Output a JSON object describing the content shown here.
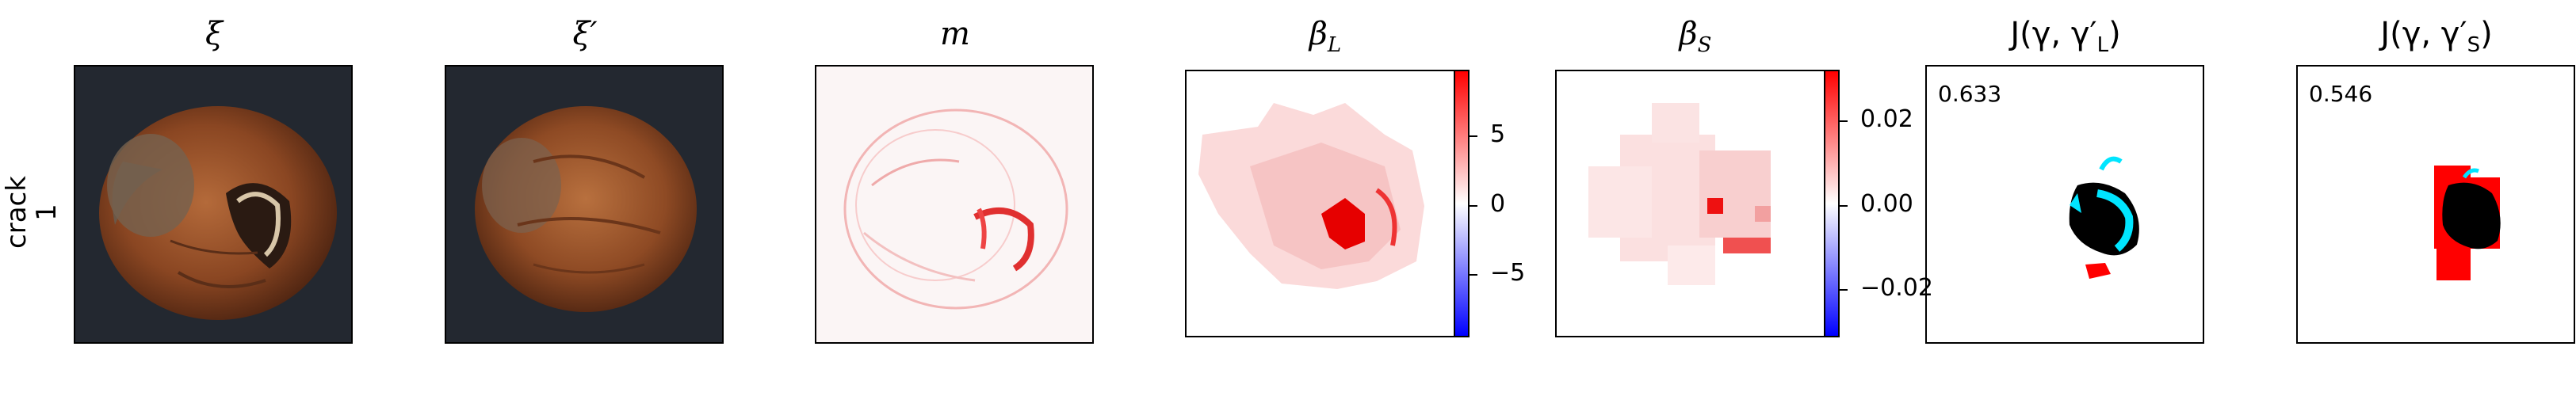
{
  "row_label": {
    "line1": "crack",
    "line2": "1"
  },
  "titles": {
    "xi": "ξ",
    "xi_prime": "ξ′",
    "m": "m",
    "beta_l": {
      "base": "β",
      "sub": "L"
    },
    "beta_s": {
      "base": "β",
      "sub": "S"
    },
    "jaccard_l": {
      "prefix": "J(γ, γ′",
      "sub": "L",
      "suffix": ")"
    },
    "jaccard_s": {
      "prefix": "J(γ, γ′",
      "sub": "S",
      "suffix": ")"
    }
  },
  "scores": {
    "jaccard_l": "0.633",
    "jaccard_s": "0.546"
  },
  "colorbar_l": {
    "ticks": [
      "5",
      "0",
      "−5"
    ]
  },
  "colorbar_s": {
    "ticks": [
      "0.02",
      "0.00",
      "−0.02"
    ]
  },
  "colors": {
    "positive": "#ff0000",
    "negative": "#0000ff",
    "mask_black": "#000000",
    "mask_cyan": "#00e5ff",
    "mask_red": "#ff0000"
  }
}
